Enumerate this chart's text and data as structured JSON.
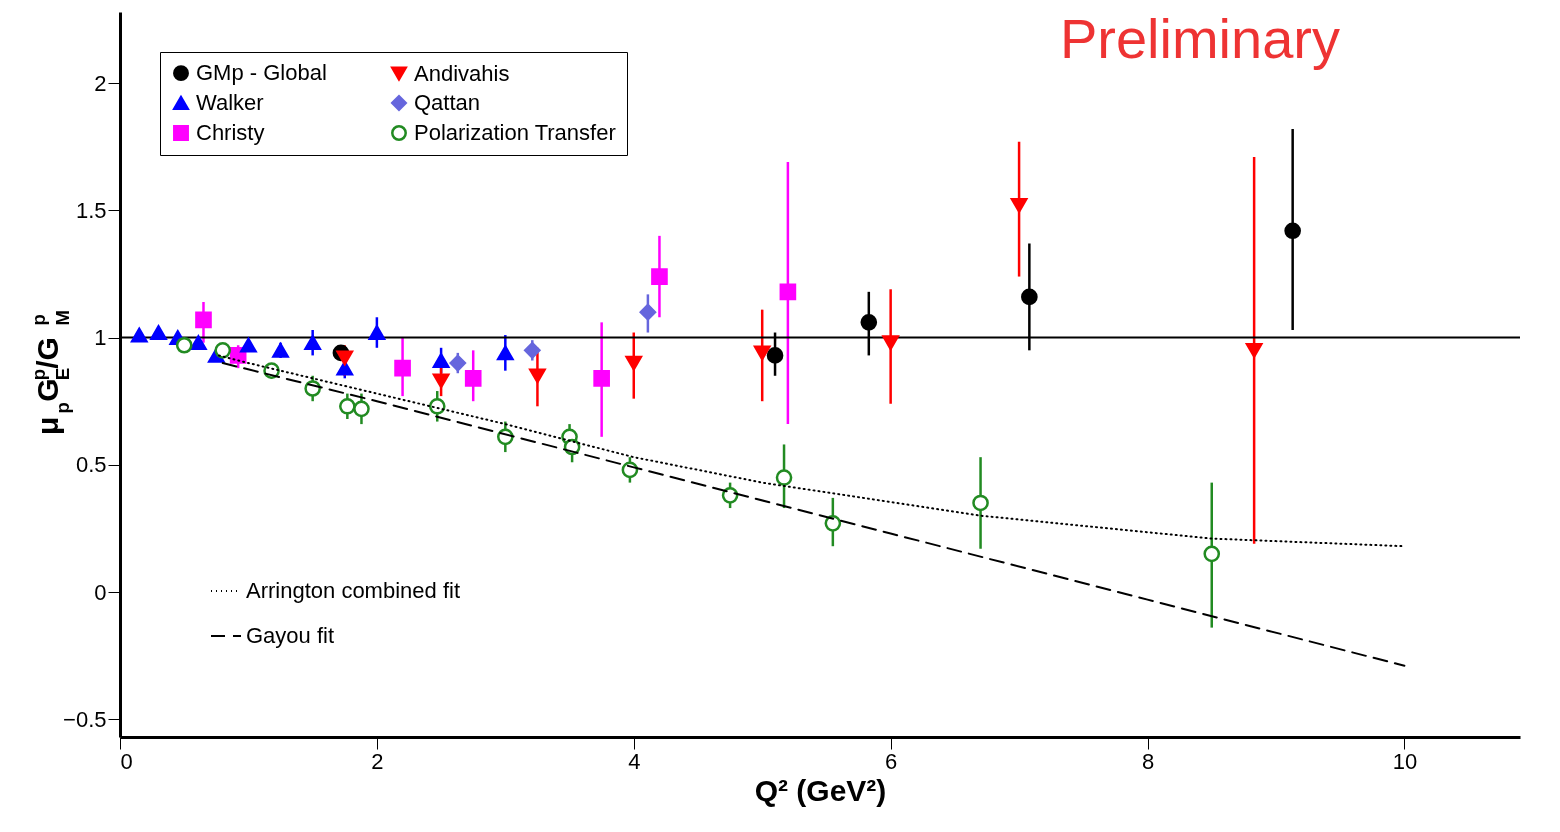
{
  "chart_data": {
    "type": "scatter",
    "xlabel": "Q² (GeV²)",
    "ylabel": "μ$_{p}$G$_{E}$$^{p}$/G$_{M}$$^{p}$",
    "xlim": [
      0,
      10.9
    ],
    "ylim": [
      -0.57,
      2.28
    ],
    "xticks": [
      0,
      2,
      4,
      6,
      8,
      10
    ],
    "yticks": [
      {
        "value": -0.5,
        "label": "−0.5"
      },
      0,
      0.5,
      1,
      1.5,
      2
    ],
    "legend": "top left",
    "annotations": [
      "Preliminary"
    ],
    "ref_lines": [
      {
        "axis": "y",
        "value": 1,
        "label": null,
        "color": "#000000"
      }
    ],
    "series": [
      {
        "name": "GMp - Global",
        "color": "#000000",
        "marker": "circle",
        "x": [
          1.72,
          5.1,
          5.83,
          7.08,
          9.13
        ],
        "values": [
          0.94,
          0.93,
          1.06,
          1.16,
          1.42
        ],
        "errors": [
          0.03,
          [
            0.85,
            1.02
          ],
          [
            0.93,
            1.18
          ],
          [
            0.95,
            1.37
          ],
          [
            1.03,
            1.82
          ]
        ]
      },
      {
        "name": "Christy",
        "color": "#ff00ff",
        "marker": "square",
        "x": [
          0.65,
          0.92,
          2.2,
          2.75,
          3.75,
          4.2,
          5.2
        ],
        "values": [
          1.07,
          0.93,
          0.88,
          0.84,
          0.84,
          1.24,
          1.18
        ],
        "errors": [
          [
            0.98,
            1.14
          ],
          [
            0.88,
            0.97
          ],
          [
            0.77,
            1.0
          ],
          [
            0.75,
            0.95
          ],
          [
            0.61,
            1.06
          ],
          [
            1.08,
            1.4
          ],
          [
            0.66,
            1.69
          ]
        ]
      },
      {
        "name": "Qattan",
        "color": "#6666dd",
        "marker": "diamond",
        "x": [
          2.63,
          3.21,
          4.11
        ],
        "values": [
          0.9,
          0.95,
          1.1
        ],
        "errors": [
          0.04,
          0.04,
          [
            1.02,
            1.17
          ]
        ]
      },
      {
        "name": "Walker",
        "color": "#0000ff",
        "marker": "triangle",
        "x": [
          0.15,
          0.3,
          0.45,
          0.61,
          0.75,
          1.0,
          1.25,
          1.5,
          1.75,
          2.0,
          2.5,
          3.0
        ],
        "values": [
          1.01,
          1.02,
          1.0,
          0.98,
          0.93,
          0.97,
          0.95,
          0.98,
          0.88,
          1.02,
          0.91,
          0.94
        ],
        "errors": [
          0.01,
          0.01,
          0.01,
          0.01,
          0.02,
          0.02,
          0.03,
          0.05,
          0.04,
          0.06,
          0.05,
          0.07
        ]
      },
      {
        "name": "Andivahis",
        "color": "#ff0000",
        "marker": "triangle-down",
        "x": [
          1.75,
          2.5,
          3.25,
          4.0,
          5.0,
          6.0,
          7.0,
          8.83
        ],
        "values": [
          0.92,
          0.83,
          0.85,
          0.9,
          0.94,
          0.98,
          1.52,
          0.95
        ],
        "errors": [
          [
            0.85,
            0.97
          ],
          [
            0.77,
            0.89
          ],
          [
            0.73,
            0.96
          ],
          [
            0.76,
            1.02
          ],
          [
            0.75,
            1.11
          ],
          [
            0.74,
            1.19
          ],
          [
            1.24,
            1.77
          ],
          [
            0.19,
            1.71
          ]
        ]
      },
      {
        "name": "Polarization Transfer",
        "color": "#228b22",
        "marker": "circle-open",
        "x": [
          0.5,
          0.8,
          1.18,
          1.5,
          1.77,
          1.88,
          2.47,
          3.0,
          3.5,
          3.52,
          3.97,
          4.75,
          5.17,
          5.55,
          6.7,
          8.5
        ],
        "values": [
          0.97,
          0.95,
          0.87,
          0.8,
          0.73,
          0.72,
          0.73,
          0.61,
          0.61,
          0.57,
          0.48,
          0.38,
          0.45,
          0.27,
          0.35,
          0.15
        ],
        "errors": [
          0.02,
          0.02,
          0.03,
          0.05,
          0.05,
          0.06,
          0.06,
          0.06,
          0.05,
          0.06,
          0.05,
          0.05,
          [
            0.33,
            0.58
          ],
          [
            0.18,
            0.37
          ],
          [
            0.17,
            0.53
          ],
          [
            -0.14,
            0.43
          ]
        ]
      },
      {
        "name": "Arrington combined fit",
        "type": "line",
        "color": "#000000",
        "line_style": "dotted",
        "marker": "none",
        "x": [
          0.77,
          1,
          2,
          3,
          4,
          5,
          6.7,
          7.5,
          8.5,
          9,
          10
        ],
        "values": [
          0.93,
          0.9,
          0.78,
          0.66,
          0.53,
          0.43,
          0.3,
          0.26,
          0.21,
          0.2,
          0.18
        ]
      },
      {
        "name": "Gayou fit",
        "type": "line",
        "color": "#000000",
        "line_style": "dashed",
        "marker": "none",
        "x": [
          0.8,
          2,
          4,
          6,
          8,
          10
        ],
        "values": [
          0.9,
          0.75,
          0.49,
          0.23,
          -0.03,
          -0.29
        ]
      }
    ]
  }
}
